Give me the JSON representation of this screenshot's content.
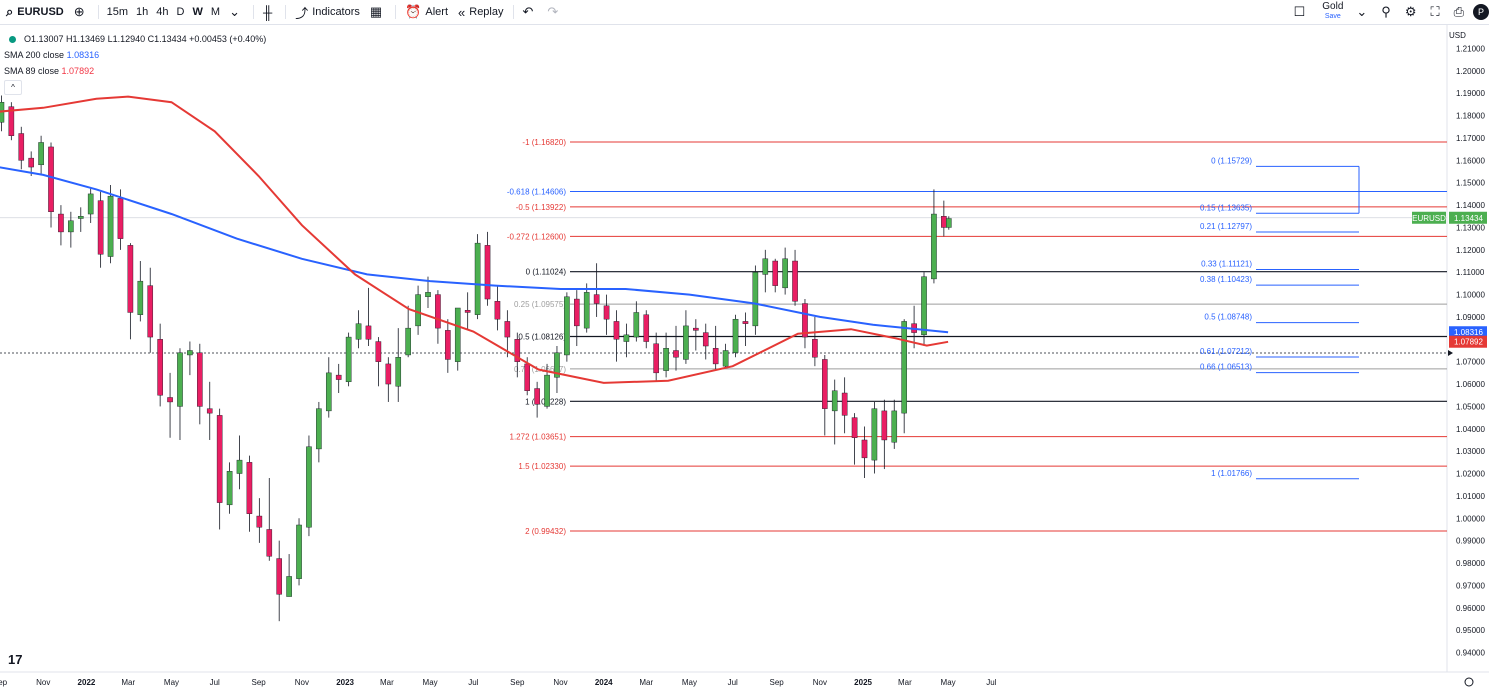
{
  "toolbar": {
    "symbol": "EURUSD",
    "intervals": [
      "15m",
      "1h",
      "4h",
      "D",
      "W",
      "M"
    ],
    "active_interval": "W",
    "indicators_label": "Indicators",
    "alert_label": "Alert",
    "replay_label": "Replay",
    "plan_label": "Gold",
    "save_label": "Save",
    "avatar_letter": "P"
  },
  "legend": {
    "ohlc": "O1.13007 H1.13469 L1.12940 C1.13434 +0.00453 (+0.40%)",
    "sma200_label": "SMA 200 close",
    "sma200_value": "1.08316",
    "sma89_label": "SMA 89 close",
    "sma89_value": "1.07892"
  },
  "currency": "USD",
  "colors": {
    "up": "#4caf50",
    "down": "#e91e63",
    "sma200": "#2962ff",
    "sma89": "#e53935",
    "fib_red": "#e53935",
    "fib_blue": "#2962ff"
  },
  "chart_data": {
    "type": "candlestick",
    "timeframe": "weekly",
    "symbol": "EURUSD",
    "y_ticks": [
      "1.21000",
      "1.20000",
      "1.19000",
      "1.18000",
      "1.17000",
      "1.16000",
      "1.15000",
      "1.14000",
      "1.13000",
      "1.12000",
      "1.11000",
      "1.10000",
      "1.09000",
      "1.08000",
      "1.07000",
      "1.06000",
      "1.05000",
      "1.04000",
      "1.03000",
      "1.02000",
      "1.01000",
      "1.00000",
      "0.99000",
      "0.98000",
      "0.97000",
      "0.96000",
      "0.95000",
      "0.94000"
    ],
    "x_ticks": [
      "Sep",
      "Nov",
      "2022",
      "Mar",
      "May",
      "Jul",
      "Sep",
      "Nov",
      "2023",
      "Mar",
      "May",
      "Jul",
      "Sep",
      "Nov",
      "2024",
      "Mar",
      "May",
      "Jul",
      "Sep",
      "Nov",
      "2025",
      "Mar",
      "May",
      "Jul"
    ],
    "ylim": [
      0.935,
      1.213
    ],
    "price_labels": [
      {
        "text": "EURUSD",
        "value": "1.13434",
        "price": 1.13434,
        "color": "#4caf50"
      },
      {
        "text": "",
        "value": "1.08316",
        "price": 1.08316,
        "color": "#2962ff"
      },
      {
        "text": "",
        "value": "1.07892",
        "price": 1.07892,
        "color": "#e53935"
      }
    ],
    "fib_extension_a": [
      {
        "label": "-1 (1.16820)",
        "price": 1.1682,
        "color": "#e53935"
      },
      {
        "label": "-0.618 (1.14606)",
        "price": 1.14606,
        "color": "#2962ff"
      },
      {
        "label": "-0.5 (1.13922)",
        "price": 1.13922,
        "color": "#e53935"
      },
      {
        "label": "-0.272 (1.12600)",
        "price": 1.126,
        "color": "#e53935"
      },
      {
        "label": "0 (1.11024)",
        "price": 1.11024,
        "color": "#131722"
      },
      {
        "label": "0.25 (1.09575)",
        "price": 1.09575,
        "color": "#9e9e9e"
      },
      {
        "label": "0.5 (1.08126)",
        "price": 1.08126,
        "color": "#131722"
      },
      {
        "label": "0.75 (1.06677)",
        "price": 1.06677,
        "color": "#9e9e9e"
      },
      {
        "label": "1 (1.05228)",
        "price": 1.05228,
        "color": "#131722"
      },
      {
        "label": "1.272 (1.03651)",
        "price": 1.03651,
        "color": "#e53935"
      },
      {
        "label": "1.5 (1.02330)",
        "price": 1.0233,
        "color": "#e53935"
      },
      {
        "label": "2 (0.99432)",
        "price": 0.99432,
        "color": "#e53935"
      }
    ],
    "fib_retracement_b": [
      {
        "label": "0 (1.15729)",
        "price": 1.15729
      },
      {
        "label": "0.15 (1.13635)",
        "price": 1.13635
      },
      {
        "label": "0.21 (1.12797)",
        "price": 1.12797
      },
      {
        "label": "0.33 (1.11121)",
        "price": 1.11121
      },
      {
        "label": "0.38 (1.10423)",
        "price": 1.10423
      },
      {
        "label": "0.5 (1.08748)",
        "price": 1.08748
      },
      {
        "label": "0.61 (1.07212)",
        "price": 1.07212
      },
      {
        "label": "0.66 (1.06513)",
        "price": 1.06513
      },
      {
        "label": "1 (1.01766)",
        "price": 1.01766
      }
    ],
    "series": [
      {
        "name": "SMA 200 close",
        "color": "#2962ff",
        "points": [
          [
            "2021-08-20",
            1.1575
          ],
          [
            "2021-11-01",
            1.1535
          ],
          [
            "2022-01-15",
            1.147
          ],
          [
            "2022-05-01",
            1.136
          ],
          [
            "2022-08-01",
            1.125
          ],
          [
            "2022-11-01",
            1.116
          ],
          [
            "2023-02-01",
            1.109
          ],
          [
            "2023-05-01",
            1.106
          ],
          [
            "2023-08-01",
            1.104
          ],
          [
            "2023-11-01",
            1.1025
          ],
          [
            "2024-02-01",
            1.1025
          ],
          [
            "2024-05-01",
            1.1
          ],
          [
            "2024-08-01",
            1.096
          ],
          [
            "2024-11-01",
            1.09
          ],
          [
            "2025-01-15",
            1.0865
          ],
          [
            "2025-05-01",
            1.0832
          ]
        ]
      },
      {
        "name": "SMA 89 close",
        "color": "#e53935",
        "points": [
          [
            "2021-08-20",
            1.1815
          ],
          [
            "2021-11-01",
            1.1835
          ],
          [
            "2022-01-15",
            1.1875
          ],
          [
            "2022-03-01",
            1.1885
          ],
          [
            "2022-05-01",
            1.186
          ],
          [
            "2022-07-01",
            1.173
          ],
          [
            "2022-09-01",
            1.153
          ],
          [
            "2022-11-01",
            1.131
          ],
          [
            "2023-01-15",
            1.109
          ],
          [
            "2023-04-01",
            1.0935
          ],
          [
            "2023-07-01",
            1.0835
          ],
          [
            "2023-10-01",
            1.0665
          ],
          [
            "2024-01-01",
            1.0605
          ],
          [
            "2024-04-01",
            1.0615
          ],
          [
            "2024-07-01",
            1.068
          ],
          [
            "2024-10-01",
            1.0825
          ],
          [
            "2024-12-15",
            1.0845
          ],
          [
            "2025-02-15",
            1.0805
          ],
          [
            "2025-04-01",
            1.0772
          ],
          [
            "2025-05-01",
            1.0789
          ]
        ]
      }
    ],
    "candles": [
      [
        "2021-08-20",
        1.17,
        1.178,
        1.166,
        1.174
      ],
      [
        "2021-09-03",
        1.177,
        1.189,
        1.173,
        1.186
      ],
      [
        "2021-09-17",
        1.184,
        1.186,
        1.169,
        1.171
      ],
      [
        "2021-10-01",
        1.172,
        1.175,
        1.156,
        1.16
      ],
      [
        "2021-10-15",
        1.161,
        1.164,
        1.153,
        1.157
      ],
      [
        "2021-10-29",
        1.158,
        1.171,
        1.154,
        1.168
      ],
      [
        "2021-11-12",
        1.166,
        1.168,
        1.13,
        1.137
      ],
      [
        "2021-11-26",
        1.136,
        1.14,
        1.122,
        1.128
      ],
      [
        "2021-12-10",
        1.128,
        1.137,
        1.121,
        1.133
      ],
      [
        "2021-12-24",
        1.134,
        1.139,
        1.128,
        1.135
      ],
      [
        "2022-01-07",
        1.136,
        1.148,
        1.132,
        1.145
      ],
      [
        "2022-01-21",
        1.142,
        1.146,
        1.112,
        1.118
      ],
      [
        "2022-02-04",
        1.117,
        1.149,
        1.114,
        1.144
      ],
      [
        "2022-02-18",
        1.143,
        1.147,
        1.12,
        1.125
      ],
      [
        "2022-03-04",
        1.122,
        1.123,
        1.08,
        1.092
      ],
      [
        "2022-03-18",
        1.091,
        1.115,
        1.088,
        1.106
      ],
      [
        "2022-04-01",
        1.104,
        1.112,
        1.074,
        1.081
      ],
      [
        "2022-04-15",
        1.08,
        1.087,
        1.05,
        1.055
      ],
      [
        "2022-04-29",
        1.054,
        1.065,
        1.036,
        1.052
      ],
      [
        "2022-05-13",
        1.05,
        1.076,
        1.035,
        1.074
      ],
      [
        "2022-05-27",
        1.073,
        1.079,
        1.064,
        1.075
      ],
      [
        "2022-06-10",
        1.074,
        1.078,
        1.042,
        1.05
      ],
      [
        "2022-06-24",
        1.049,
        1.061,
        1.035,
        1.047
      ],
      [
        "2022-07-08",
        1.046,
        1.049,
        0.995,
        1.007
      ],
      [
        "2022-07-22",
        1.006,
        1.025,
        1.002,
        1.021
      ],
      [
        "2022-08-05",
        1.02,
        1.037,
        1.013,
        1.026
      ],
      [
        "2022-08-19",
        1.025,
        1.028,
        0.994,
        1.002
      ],
      [
        "2022-09-02",
        1.001,
        1.009,
        0.989,
        0.996
      ],
      [
        "2022-09-16",
        0.995,
        1.018,
        0.981,
        0.983
      ],
      [
        "2022-09-30",
        0.982,
        0.99,
        0.954,
        0.966
      ],
      [
        "2022-10-14",
        0.965,
        0.984,
        0.965,
        0.974
      ],
      [
        "2022-10-28",
        0.973,
        1.0,
        0.97,
        0.997
      ],
      [
        "2022-11-11",
        0.996,
        1.037,
        0.992,
        1.032
      ],
      [
        "2022-11-25",
        1.031,
        1.052,
        1.025,
        1.049
      ],
      [
        "2022-12-09",
        1.048,
        1.072,
        1.045,
        1.065
      ],
      [
        "2022-12-23",
        1.064,
        1.069,
        1.056,
        1.062
      ],
      [
        "2023-01-06",
        1.061,
        1.083,
        1.059,
        1.081
      ],
      [
        "2023-01-20",
        1.08,
        1.093,
        1.076,
        1.087
      ],
      [
        "2023-02-03",
        1.086,
        1.103,
        1.077,
        1.08
      ],
      [
        "2023-02-17",
        1.079,
        1.081,
        1.059,
        1.07
      ],
      [
        "2023-03-03",
        1.069,
        1.072,
        1.052,
        1.06
      ],
      [
        "2023-03-17",
        1.059,
        1.085,
        1.052,
        1.072
      ],
      [
        "2023-03-31",
        1.073,
        1.095,
        1.072,
        1.085
      ],
      [
        "2023-04-14",
        1.086,
        1.104,
        1.082,
        1.1
      ],
      [
        "2023-04-28",
        1.099,
        1.108,
        1.094,
        1.101
      ],
      [
        "2023-05-12",
        1.1,
        1.102,
        1.078,
        1.085
      ],
      [
        "2023-05-26",
        1.084,
        1.089,
        1.065,
        1.071
      ],
      [
        "2023-06-09",
        1.07,
        1.093,
        1.066,
        1.094
      ],
      [
        "2023-06-23",
        1.093,
        1.101,
        1.084,
        1.092
      ],
      [
        "2023-07-07",
        1.091,
        1.127,
        1.089,
        1.123
      ],
      [
        "2023-07-21",
        1.122,
        1.128,
        1.095,
        1.098
      ],
      [
        "2023-08-04",
        1.097,
        1.104,
        1.084,
        1.089
      ],
      [
        "2023-08-18",
        1.088,
        1.093,
        1.072,
        1.081
      ],
      [
        "2023-09-01",
        1.08,
        1.083,
        1.063,
        1.07
      ],
      [
        "2023-09-15",
        1.069,
        1.072,
        1.055,
        1.057
      ],
      [
        "2023-09-29",
        1.058,
        1.061,
        1.045,
        1.051
      ],
      [
        "2023-10-13",
        1.05,
        1.069,
        1.049,
        1.064
      ],
      [
        "2023-10-27",
        1.063,
        1.077,
        1.056,
        1.074
      ],
      [
        "2023-11-10",
        1.073,
        1.101,
        1.07,
        1.099
      ],
      [
        "2023-11-24",
        1.098,
        1.102,
        1.077,
        1.086
      ],
      [
        "2023-12-08",
        1.085,
        1.105,
        1.083,
        1.101
      ],
      [
        "2023-12-22",
        1.1,
        1.114,
        1.09,
        1.096
      ],
      [
        "2024-01-05",
        1.095,
        1.1,
        1.082,
        1.089
      ],
      [
        "2024-01-19",
        1.088,
        1.093,
        1.07,
        1.08
      ],
      [
        "2024-02-02",
        1.079,
        1.087,
        1.072,
        1.082
      ],
      [
        "2024-02-16",
        1.081,
        1.097,
        1.079,
        1.092
      ],
      [
        "2024-03-01",
        1.091,
        1.093,
        1.076,
        1.079
      ],
      [
        "2024-03-15",
        1.078,
        1.083,
        1.061,
        1.065
      ],
      [
        "2024-03-29",
        1.066,
        1.083,
        1.063,
        1.076
      ],
      [
        "2024-04-12",
        1.075,
        1.086,
        1.066,
        1.072
      ],
      [
        "2024-04-26",
        1.071,
        1.093,
        1.069,
        1.086
      ],
      [
        "2024-05-10",
        1.085,
        1.089,
        1.075,
        1.084
      ],
      [
        "2024-05-24",
        1.083,
        1.087,
        1.071,
        1.077
      ],
      [
        "2024-06-07",
        1.076,
        1.086,
        1.066,
        1.069
      ],
      [
        "2024-06-21",
        1.068,
        1.078,
        1.067,
        1.075
      ],
      [
        "2024-07-05",
        1.074,
        1.091,
        1.072,
        1.089
      ],
      [
        "2024-07-19",
        1.088,
        1.092,
        1.077,
        1.087
      ],
      [
        "2024-08-02",
        1.086,
        1.113,
        1.082,
        1.11
      ],
      [
        "2024-08-16",
        1.109,
        1.12,
        1.101,
        1.116
      ],
      [
        "2024-08-30",
        1.115,
        1.116,
        1.101,
        1.104
      ],
      [
        "2024-09-13",
        1.103,
        1.121,
        1.1,
        1.116
      ],
      [
        "2024-09-27",
        1.115,
        1.12,
        1.095,
        1.097
      ],
      [
        "2024-10-11",
        1.096,
        1.098,
        1.076,
        1.081
      ],
      [
        "2024-10-25",
        1.08,
        1.09,
        1.068,
        1.072
      ],
      [
        "2024-11-08",
        1.071,
        1.073,
        1.037,
        1.049
      ],
      [
        "2024-11-22",
        1.048,
        1.062,
        1.033,
        1.057
      ],
      [
        "2024-12-06",
        1.056,
        1.063,
        1.038,
        1.046
      ],
      [
        "2024-12-20",
        1.045,
        1.047,
        1.024,
        1.036
      ],
      [
        "2025-01-03",
        1.035,
        1.041,
        1.018,
        1.027
      ],
      [
        "2025-01-17",
        1.026,
        1.052,
        1.02,
        1.049
      ],
      [
        "2025-01-31",
        1.048,
        1.053,
        1.022,
        1.035
      ],
      [
        "2025-02-14",
        1.034,
        1.053,
        1.031,
        1.048
      ],
      [
        "2025-02-28",
        1.047,
        1.089,
        1.038,
        1.088
      ],
      [
        "2025-03-14",
        1.087,
        1.095,
        1.076,
        1.083
      ],
      [
        "2025-03-28",
        1.082,
        1.11,
        1.077,
        1.108
      ],
      [
        "2025-04-11",
        1.107,
        1.147,
        1.105,
        1.136
      ],
      [
        "2025-04-25",
        1.135,
        1.142,
        1.126,
        1.13
      ],
      [
        "2025-05-02",
        1.13,
        1.135,
        1.129,
        1.134
      ]
    ]
  }
}
